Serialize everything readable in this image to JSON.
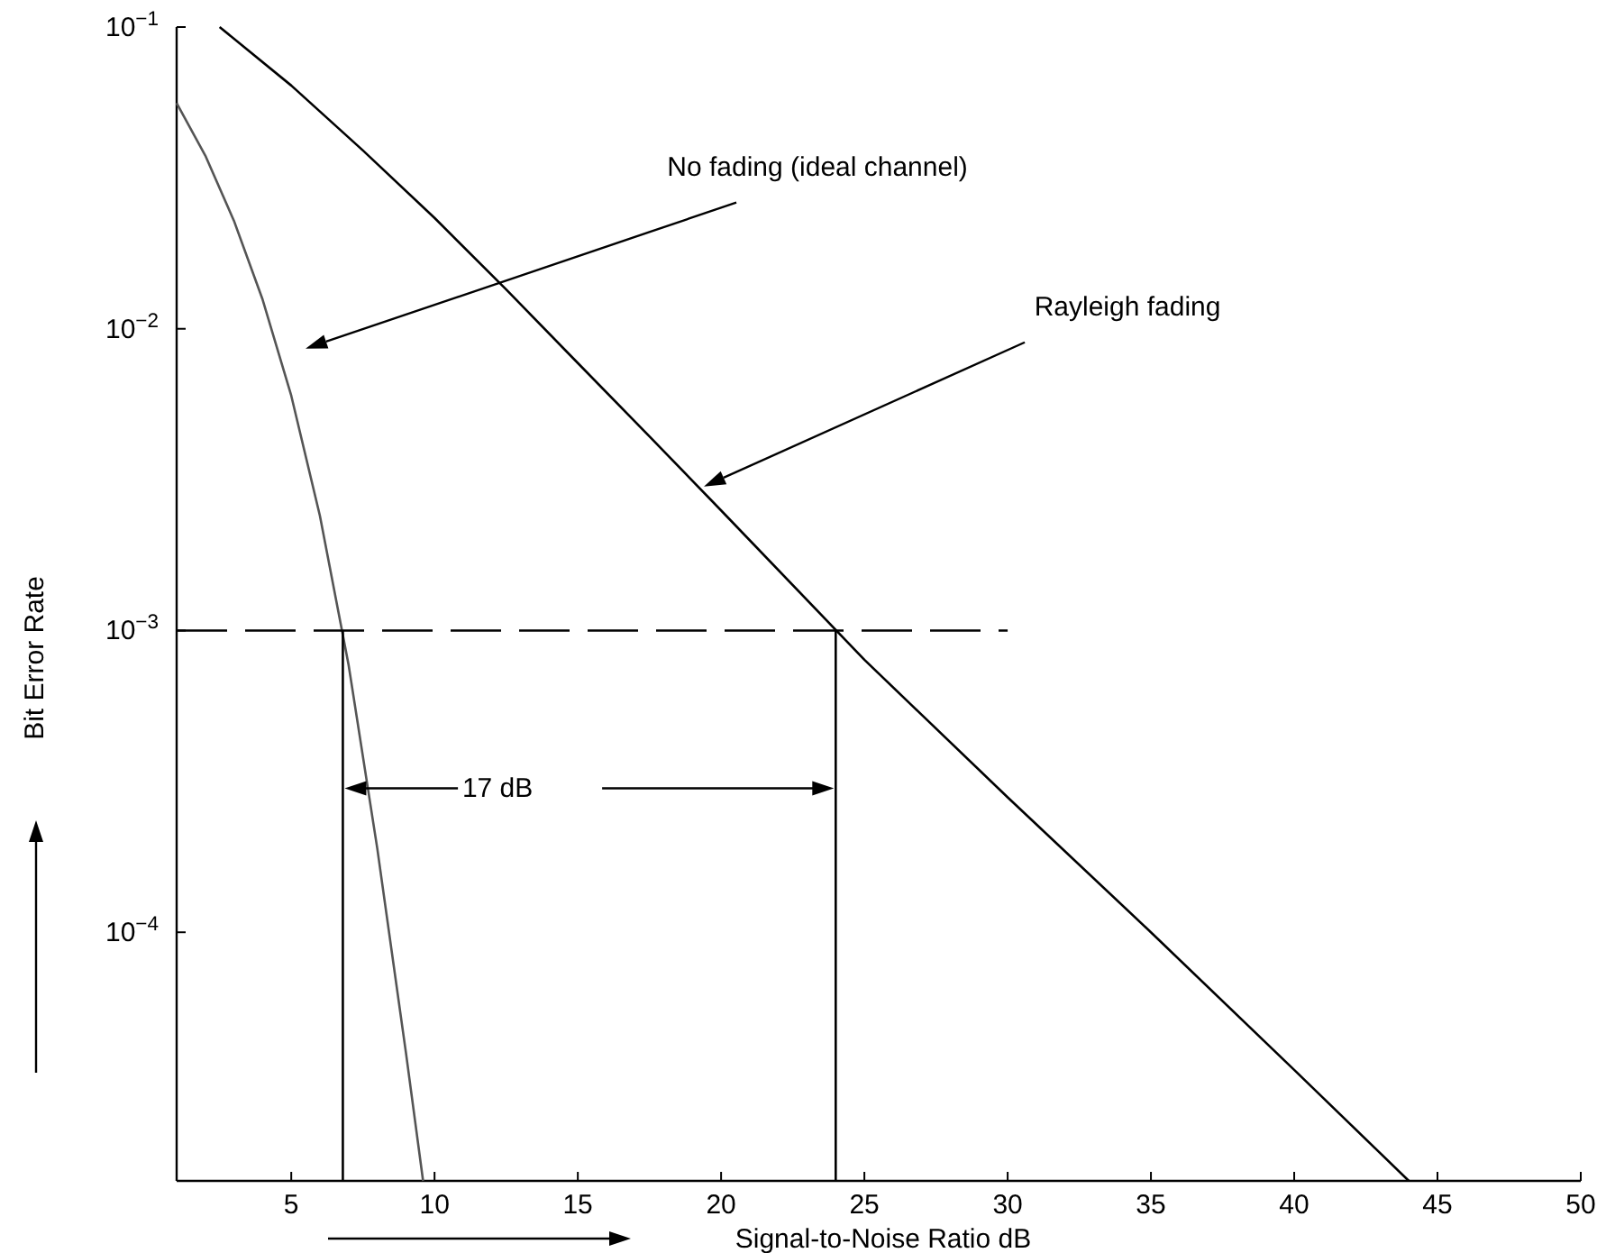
{
  "chart_data": {
    "type": "line",
    "xlabel": "Signal-to-Noise Ratio dB",
    "ylabel": "Bit Error Rate",
    "log": "y",
    "grid": false,
    "marker": "none",
    "xlim": [
      1,
      50
    ],
    "xticks": [
      5,
      10,
      15,
      20,
      25,
      30,
      35,
      40,
      45,
      50
    ],
    "ylim": [
      1.5e-05,
      0.1
    ],
    "yticks": [
      {
        "value": 0.1,
        "label": "10$^{−1}$"
      },
      {
        "value": 0.01,
        "label": "10$^{−2}$"
      },
      {
        "value": 0.001,
        "label": "10$^{−3}$"
      },
      {
        "value": 0.0001,
        "label": "10$^{−4}$"
      }
    ],
    "series": [
      {
        "color": "#555555",
        "line_style": "solid",
        "x": [
          1,
          2,
          3,
          4,
          5,
          6,
          7,
          8,
          9,
          9.6
        ],
        "values": [
          0.056,
          0.0375,
          0.0228,
          0.0125,
          0.006,
          0.0024,
          0.00077,
          0.00019,
          4e-05,
          1.5e-05
        ]
      },
      {
        "color": "#000000",
        "line_style": "solid",
        "x": [
          2.5,
          5,
          7.5,
          10,
          12.5,
          15,
          17.5,
          20,
          25,
          30,
          35,
          40,
          44
        ],
        "values": [
          0.1,
          0.064,
          0.039,
          0.0233,
          0.0135,
          0.0077,
          0.0044,
          0.0025,
          0.0008,
          0.00028,
          0.0001,
          3.5e-05,
          1.5e-05
        ]
      },
      {
        "color": "#000000",
        "line_style": "dashed",
        "x": [
          1,
          30
        ],
        "values": [
          0.001,
          0.001
        ]
      },
      {
        "color": "#000000",
        "line_style": "solid",
        "x": [
          6.8,
          6.8
        ],
        "values": [
          1.5e-05,
          0.001
        ]
      },
      {
        "color": "#000000",
        "line_style": "solid",
        "x": [
          24,
          24
        ],
        "values": [
          1.5e-05,
          0.001
        ]
      }
    ],
    "annotations": [
      "No fading (ideal channel)",
      "Rayleigh fading",
      "17 dB"
    ]
  }
}
